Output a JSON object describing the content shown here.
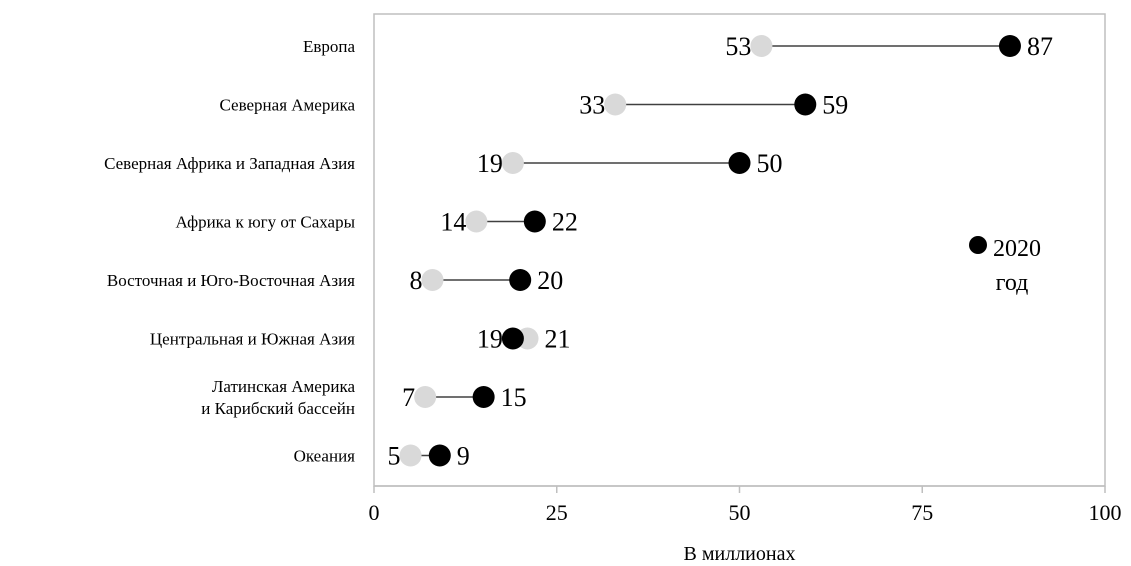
{
  "chart_data": {
    "type": "dumbbell",
    "xlabel": "В миллионах",
    "xlim": [
      0,
      100
    ],
    "xticks": [
      0,
      25,
      50,
      75,
      100
    ],
    "grid": false,
    "legend_position": "right",
    "colors": {
      "earlier": "#d9d9d9",
      "later": "#000000",
      "connector": "#404040",
      "frame": "#bfbfbf"
    },
    "series": [
      {
        "name": "",
        "color": "#d9d9d9"
      },
      {
        "name": "2020 год",
        "color": "#000000"
      }
    ],
    "categories": [
      {
        "label": [
          "Европа"
        ],
        "start": 53,
        "end": 87
      },
      {
        "label": [
          "Северная Америка"
        ],
        "start": 33,
        "end": 59
      },
      {
        "label": [
          "Северная Африка и Западная Азия"
        ],
        "start": 19,
        "end": 50
      },
      {
        "label": [
          "Африка к югу от Сахары"
        ],
        "start": 14,
        "end": 22
      },
      {
        "label": [
          "Восточная и Юго-Восточная Азия"
        ],
        "start": 8,
        "end": 20
      },
      {
        "label": [
          "Центральная и Южная Азия"
        ],
        "start": 21,
        "end": 19
      },
      {
        "label": [
          "Латинская Америка",
          "и Карибский бассейн"
        ],
        "start": 7,
        "end": 15
      },
      {
        "label": [
          "Океания"
        ],
        "start": 5,
        "end": 9
      }
    ]
  }
}
